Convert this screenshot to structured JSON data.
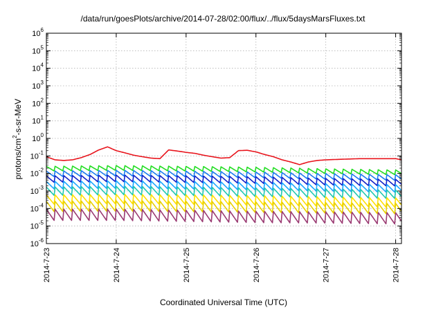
{
  "chart_data": {
    "type": "line",
    "title": "/data/run/goesPlots/archive/2014-07-28/02:00/flux/../flux/5daysMarsFluxes.txt",
    "xlabel": "Coordinated Universal Time (UTC)",
    "ylabel": "protons/cm2-s-sr-MeV",
    "ylabel_parts": {
      "pre": "protons/cm",
      "sup": "2",
      "post": "-s-sr-MeV"
    },
    "y_scale": "log",
    "ylim": [
      1e-06,
      1000000.0
    ],
    "y_ticks": [
      {
        "value": 1e-06,
        "base": "10",
        "exp": "-6"
      },
      {
        "value": 1e-05,
        "base": "10",
        "exp": "-5"
      },
      {
        "value": 0.0001,
        "base": "10",
        "exp": "-4"
      },
      {
        "value": 0.001,
        "base": "10",
        "exp": "-3"
      },
      {
        "value": 0.01,
        "base": "10",
        "exp": "-2"
      },
      {
        "value": 0.1,
        "base": "10",
        "exp": "-1"
      },
      {
        "value": 1.0,
        "base": "10",
        "exp": "0"
      },
      {
        "value": 10.0,
        "base": "10",
        "exp": "1"
      },
      {
        "value": 100.0,
        "base": "10",
        "exp": "2"
      },
      {
        "value": 1000.0,
        "base": "10",
        "exp": "3"
      },
      {
        "value": 10000.0,
        "base": "10",
        "exp": "4"
      },
      {
        "value": 100000.0,
        "base": "10",
        "exp": "5"
      },
      {
        "value": 1000000.0,
        "base": "10",
        "exp": "6"
      }
    ],
    "xlim": [
      "2014-07-23 00:00",
      "2014-07-28 02:00"
    ],
    "x_ticks": [
      "2014-7-23",
      "2014-7-24",
      "2014-7-25",
      "2014-7-26",
      "2014-7-27",
      "2014-7-28"
    ],
    "grid": true,
    "legend": "none",
    "series": [
      {
        "color": "#e8141c",
        "sawtooth_period_hours": 3,
        "points": [
          [
            "2014-07-23 00:00",
            0.09
          ],
          [
            "2014-07-23 03:00",
            0.06
          ],
          [
            "2014-07-23 06:00",
            0.055
          ],
          [
            "2014-07-23 09:00",
            0.06
          ],
          [
            "2014-07-23 12:00",
            0.08
          ],
          [
            "2014-07-23 15:00",
            0.12
          ],
          [
            "2014-07-23 18:00",
            0.22
          ],
          [
            "2014-07-23 21:00",
            0.33
          ],
          [
            "2014-07-24 00:00",
            0.2
          ],
          [
            "2014-07-24 03:00",
            0.15
          ],
          [
            "2014-07-24 06:00",
            0.11
          ],
          [
            "2014-07-24 09:00",
            0.09
          ],
          [
            "2014-07-24 12:00",
            0.075
          ],
          [
            "2014-07-24 15:00",
            0.07
          ],
          [
            "2014-07-24 18:00",
            0.22
          ],
          [
            "2014-07-24 21:00",
            0.19
          ],
          [
            "2014-07-25 00:00",
            0.16
          ],
          [
            "2014-07-25 03:00",
            0.14
          ],
          [
            "2014-07-25 06:00",
            0.11
          ],
          [
            "2014-07-25 09:00",
            0.09
          ],
          [
            "2014-07-25 12:00",
            0.075
          ],
          [
            "2014-07-25 15:00",
            0.08
          ],
          [
            "2014-07-25 18:00",
            0.2
          ],
          [
            "2014-07-25 21:00",
            0.21
          ],
          [
            "2014-07-26 00:00",
            0.17
          ],
          [
            "2014-07-26 03:00",
            0.12
          ],
          [
            "2014-07-26 06:00",
            0.09
          ],
          [
            "2014-07-26 09:00",
            0.06
          ],
          [
            "2014-07-26 12:00",
            0.045
          ],
          [
            "2014-07-26 15:00",
            0.032
          ],
          [
            "2014-07-26 18:00",
            0.045
          ],
          [
            "2014-07-26 21:00",
            0.055
          ],
          [
            "2014-07-27 00:00",
            0.06
          ],
          [
            "2014-07-27 06:00",
            0.065
          ],
          [
            "2014-07-27 12:00",
            0.07
          ],
          [
            "2014-07-27 18:00",
            0.07
          ],
          [
            "2014-07-28 00:00",
            0.07
          ],
          [
            "2014-07-28 02:00",
            0.06
          ]
        ]
      },
      {
        "color": "#22dd22",
        "sawtooth_period_hours": 3,
        "points": [
          [
            "2014-07-23 00:00",
            0.018
          ],
          [
            "2014-07-24 00:00",
            0.02
          ],
          [
            "2014-07-25 00:00",
            0.018
          ],
          [
            "2014-07-26 00:00",
            0.016
          ],
          [
            "2014-07-27 00:00",
            0.013
          ],
          [
            "2014-07-28 02:00",
            0.011
          ]
        ]
      },
      {
        "color": "#1a7cf0",
        "sawtooth_period_hours": 3,
        "points": [
          [
            "2014-07-23 00:00",
            0.009
          ],
          [
            "2014-07-24 00:00",
            0.01
          ],
          [
            "2014-07-25 00:00",
            0.009
          ],
          [
            "2014-07-26 00:00",
            0.008
          ],
          [
            "2014-07-27 00:00",
            0.0065
          ],
          [
            "2014-07-28 02:00",
            0.0055
          ]
        ]
      },
      {
        "color": "#1020c8",
        "sawtooth_period_hours": 3,
        "points": [
          [
            "2014-07-23 00:00",
            0.0045
          ],
          [
            "2014-07-24 00:00",
            0.005
          ],
          [
            "2014-07-25 00:00",
            0.0045
          ],
          [
            "2014-07-26 00:00",
            0.004
          ],
          [
            "2014-07-27 00:00",
            0.0032
          ],
          [
            "2014-07-28 02:00",
            0.0028
          ]
        ]
      },
      {
        "color": "#1aa6ff",
        "sawtooth_period_hours": 3,
        "points": [
          [
            "2014-07-23 00:00",
            0.002
          ],
          [
            "2014-07-24 00:00",
            0.0022
          ],
          [
            "2014-07-25 00:00",
            0.002
          ],
          [
            "2014-07-26 00:00",
            0.0018
          ],
          [
            "2014-07-27 00:00",
            0.0015
          ],
          [
            "2014-07-28 02:00",
            0.0013
          ]
        ]
      },
      {
        "color": "#20c8b0",
        "sawtooth_period_hours": 3,
        "points": [
          [
            "2014-07-23 00:00",
            0.0009
          ],
          [
            "2014-07-24 00:00",
            0.001
          ],
          [
            "2014-07-25 00:00",
            0.0009
          ],
          [
            "2014-07-26 00:00",
            0.0008
          ],
          [
            "2014-07-27 00:00",
            0.0007
          ],
          [
            "2014-07-28 02:00",
            0.0006
          ]
        ]
      },
      {
        "color": "#ffe000",
        "sawtooth_period_hours": 3,
        "points": [
          [
            "2014-07-23 00:00",
            0.0003
          ],
          [
            "2014-07-24 00:00",
            0.00032
          ],
          [
            "2014-07-25 00:00",
            0.0003
          ],
          [
            "2014-07-26 00:00",
            0.00027
          ],
          [
            "2014-07-27 00:00",
            0.00023
          ],
          [
            "2014-07-28 02:00",
            0.0002
          ]
        ]
      },
      {
        "color": "#e8d000",
        "sawtooth_period_hours": 3,
        "points": [
          [
            "2014-07-23 00:00",
            0.00012
          ],
          [
            "2014-07-24 00:00",
            0.00013
          ],
          [
            "2014-07-25 00:00",
            0.00012
          ],
          [
            "2014-07-26 00:00",
            0.00011
          ],
          [
            "2014-07-27 00:00",
            0.0001
          ],
          [
            "2014-07-28 02:00",
            9e-05
          ]
        ]
      },
      {
        "color": "#9a3a72",
        "sawtooth_period_hours": 3,
        "points": [
          [
            "2014-07-23 00:00",
            4e-05
          ],
          [
            "2014-07-24 00:00",
            4e-05
          ],
          [
            "2014-07-25 00:00",
            3.5e-05
          ],
          [
            "2014-07-26 00:00",
            3e-05
          ],
          [
            "2014-07-27 00:00",
            2.8e-05
          ],
          [
            "2014-07-28 02:00",
            2.5e-05
          ]
        ]
      }
    ]
  }
}
